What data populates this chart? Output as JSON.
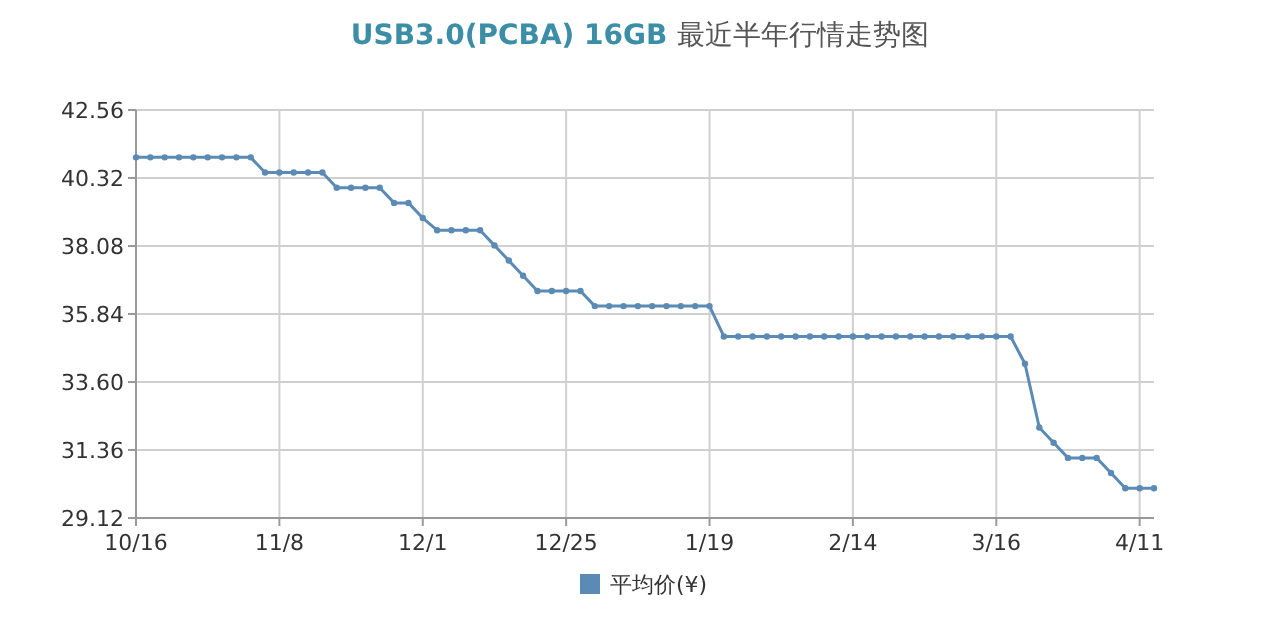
{
  "chart_data": {
    "type": "line",
    "title": "USB3.0(PCBA) 16GB 最近半年行情走势图",
    "categories": [
      "10/16",
      null,
      null,
      null,
      null,
      null,
      null,
      null,
      null,
      null,
      "11/8",
      null,
      null,
      null,
      null,
      null,
      null,
      null,
      null,
      null,
      "12/1",
      null,
      null,
      null,
      null,
      null,
      null,
      null,
      null,
      null,
      "12/25",
      null,
      null,
      null,
      null,
      null,
      null,
      null,
      null,
      null,
      "1/19",
      null,
      null,
      null,
      null,
      null,
      null,
      null,
      null,
      null,
      "2/14",
      null,
      null,
      null,
      null,
      null,
      null,
      null,
      null,
      null,
      "3/16",
      null,
      null,
      null,
      null,
      null,
      null,
      null,
      null,
      null,
      "4/11",
      null
    ],
    "series": [
      {
        "name": "平均价(¥)",
        "color": "#5b8bb5",
        "values": [
          41.0,
          41.0,
          41.0,
          41.0,
          41.0,
          41.0,
          41.0,
          41.0,
          41.0,
          40.5,
          40.5,
          40.5,
          40.5,
          40.5,
          40.0,
          40.0,
          40.0,
          40.0,
          39.5,
          39.5,
          39.0,
          38.6,
          38.6,
          38.6,
          38.6,
          38.1,
          37.6,
          37.1,
          36.6,
          36.6,
          36.6,
          36.6,
          36.1,
          36.1,
          36.1,
          36.1,
          36.1,
          36.1,
          36.1,
          36.1,
          36.1,
          35.1,
          35.1,
          35.1,
          35.1,
          35.1,
          35.1,
          35.1,
          35.1,
          35.1,
          35.1,
          35.1,
          35.1,
          35.1,
          35.1,
          35.1,
          35.1,
          35.1,
          35.1,
          35.1,
          35.1,
          35.1,
          34.2,
          32.1,
          31.6,
          31.1,
          31.1,
          31.1,
          30.6,
          30.1,
          30.1,
          30.1
        ]
      }
    ],
    "ylim": [
      29.12,
      42.56
    ],
    "yticks": [
      29.12,
      31.36,
      {
        "value": 33.6,
        "label": "33.60"
      },
      35.84,
      38.08,
      40.32,
      42.56
    ],
    "grid": true,
    "legend": "bottom",
    "marker": "circle",
    "line_style": "solid"
  }
}
